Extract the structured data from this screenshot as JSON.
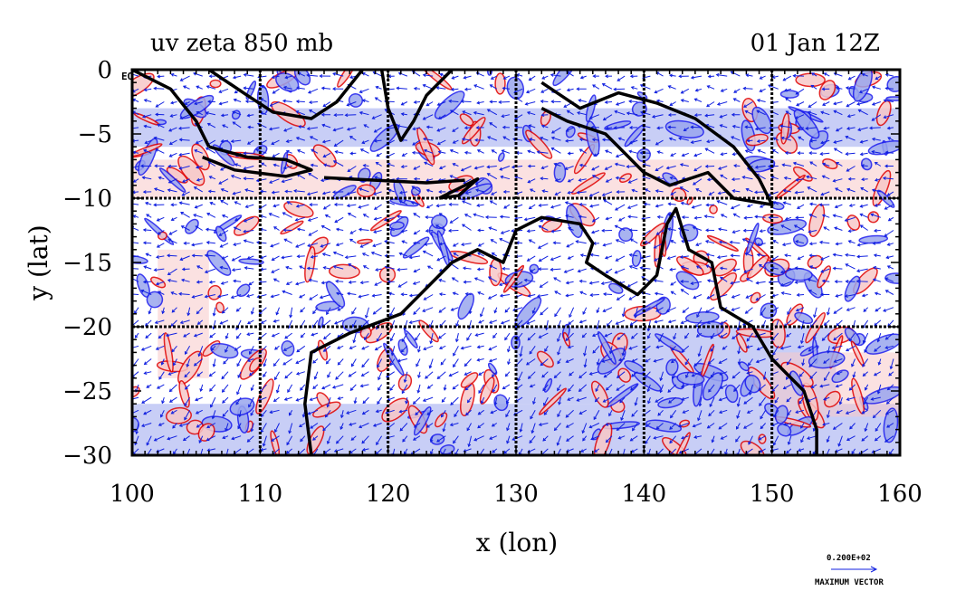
{
  "chart_data": {
    "type": "vector-contour-map",
    "title_left": "uv zeta 850 mb",
    "title_right": "01 Jan 12Z",
    "xlabel": "x (lon)",
    "ylabel": "y (lat)",
    "xlim": [
      100,
      160
    ],
    "ylim": [
      -30,
      0
    ],
    "xticks": [
      100,
      110,
      120,
      130,
      140,
      150,
      160
    ],
    "yticks": [
      0,
      -5,
      -10,
      -15,
      -20,
      -25,
      -30
    ],
    "ytick_labels": [
      "0",
      "−5",
      "−10",
      "−15",
      "−20",
      "−25",
      "−30"
    ],
    "origin_suffix": "EQ",
    "grid_lon": [
      110,
      120,
      130,
      140,
      150
    ],
    "grid_lat": [
      -10,
      -20
    ],
    "max_vector_value": "0.200E+02",
    "max_vector_label": "MAXIMUM VECTOR",
    "colors": {
      "positive_contour": "#e00000",
      "positive_fill": "#f7c8c8",
      "negative_contour": "#1a1aee",
      "negative_fill": "#9aa6ee",
      "vectors": "#1020e0",
      "coast": "#000000"
    }
  }
}
